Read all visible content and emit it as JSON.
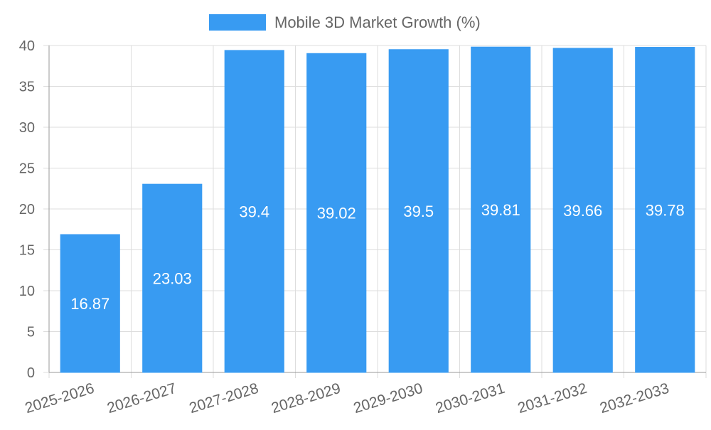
{
  "chart_data": {
    "type": "bar",
    "title": "",
    "xlabel": "",
    "ylabel": "",
    "categories": [
      "2025-2026",
      "2026-2027",
      "2027-2028",
      "2028-2029",
      "2029-2030",
      "2030-2031",
      "2031-2032",
      "2032-2033"
    ],
    "series": [
      {
        "name": "Mobile 3D Market Growth (%)",
        "values": [
          16.87,
          23.03,
          39.4,
          39.02,
          39.5,
          39.81,
          39.66,
          39.78
        ],
        "data_labels": [
          "16.87",
          "23.03",
          "39.4",
          "39.02",
          "39.5",
          "39.81",
          "39.66",
          "39.78"
        ],
        "color": "#389bf2"
      }
    ],
    "ylim": [
      0,
      40
    ],
    "y_ticks": [
      "0",
      "5",
      "10",
      "15",
      "20",
      "25",
      "30",
      "35",
      "40"
    ],
    "grid": true,
    "legend": "top-center",
    "colors": {
      "grid": "#dddddd",
      "axis": "#999999",
      "tick_text": "#666666",
      "data_label": "#ffffff",
      "legend_text": "#666666"
    }
  }
}
